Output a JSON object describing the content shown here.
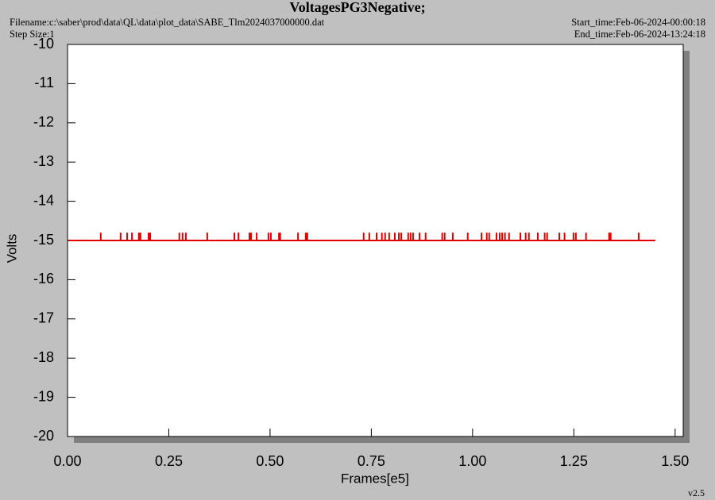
{
  "chart_data": {
    "type": "line",
    "title": "VoltagesPG3Negative;",
    "filename": "Filename:c:\\saber\\prod\\data\\QL\\data\\plot_data\\SABE_Tlm2024037000000.dat",
    "step_size": "Step Size:1",
    "start_time": "Start_time:Feb-06-2024-00:00:18",
    "end_time": "End_time:Feb-06-2024-13:24:18",
    "version": "v2.5",
    "xlabel": "Frames[e5]",
    "ylabel": "Volts",
    "xlim": [
      0,
      1.52
    ],
    "ylim": [
      -20,
      -10
    ],
    "xticks": [
      {
        "value": 0,
        "label": "0.00"
      },
      {
        "value": 0.25,
        "label": "0.25"
      },
      {
        "value": 0.5,
        "label": "0.50"
      },
      {
        "value": 0.75,
        "label": "0.75"
      },
      {
        "value": 1,
        "label": "1.00"
      },
      {
        "value": 1.25,
        "label": "1.25"
      },
      {
        "value": 1.5,
        "label": "1.50"
      }
    ],
    "yticks": [
      -20,
      -19,
      -18,
      -17,
      -16,
      -15,
      -14,
      -13,
      -12,
      -11,
      -10
    ],
    "series": [
      {
        "color": "#e00000",
        "x": [
          0,
          0.082,
          0.082,
          0.082,
          0.131,
          0.131,
          0.131,
          0.147,
          0.147,
          0.147,
          0.159,
          0.159,
          0.159,
          0.176,
          0.176,
          0.176,
          0.18,
          0.18,
          0.18,
          0.2,
          0.2,
          0.2,
          0.204,
          0.204,
          0.204,
          0.276,
          0.276,
          0.276,
          0.284,
          0.284,
          0.284,
          0.292,
          0.292,
          0.292,
          0.345,
          0.345,
          0.345,
          0.412,
          0.412,
          0.412,
          0.422,
          0.422,
          0.422,
          0.449,
          0.449,
          0.449,
          0.453,
          0.453,
          0.453,
          0.467,
          0.467,
          0.467,
          0.496,
          0.496,
          0.496,
          0.502,
          0.502,
          0.502,
          0.522,
          0.522,
          0.522,
          0.525,
          0.525,
          0.525,
          0.569,
          0.569,
          0.569,
          0.588,
          0.588,
          0.588,
          0.592,
          0.592,
          0.592,
          0.731,
          0.731,
          0.731,
          0.745,
          0.745,
          0.745,
          0.763,
          0.763,
          0.763,
          0.776,
          0.776,
          0.776,
          0.784,
          0.784,
          0.784,
          0.794,
          0.794,
          0.794,
          0.808,
          0.808,
          0.808,
          0.818,
          0.818,
          0.818,
          0.824,
          0.824,
          0.824,
          0.841,
          0.841,
          0.841,
          0.847,
          0.847,
          0.847,
          0.853,
          0.853,
          0.853,
          0.869,
          0.869,
          0.869,
          0.884,
          0.884,
          0.884,
          0.925,
          0.925,
          0.925,
          0.931,
          0.931,
          0.931,
          0.951,
          0.951,
          0.951,
          0.988,
          0.988,
          0.988,
          1.022,
          1.022,
          1.022,
          1.035,
          1.035,
          1.035,
          1.041,
          1.041,
          1.041,
          1.059,
          1.059,
          1.059,
          1.067,
          1.067,
          1.067,
          1.073,
          1.073,
          1.073,
          1.08,
          1.08,
          1.08,
          1.09,
          1.09,
          1.09,
          1.118,
          1.118,
          1.118,
          1.131,
          1.131,
          1.131,
          1.139,
          1.139,
          1.139,
          1.161,
          1.161,
          1.161,
          1.178,
          1.178,
          1.178,
          1.184,
          1.184,
          1.184,
          1.214,
          1.214,
          1.214,
          1.227,
          1.227,
          1.227,
          1.249,
          1.249,
          1.249,
          1.255,
          1.255,
          1.255,
          1.28,
          1.28,
          1.28,
          1.337,
          1.337,
          1.337,
          1.341,
          1.341,
          1.341,
          1.41,
          1.41,
          1.41,
          1.451
        ],
        "values": [
          -15,
          -15,
          -14.8,
          -15,
          -15,
          -14.8,
          -15,
          -15,
          -14.8,
          -15,
          -15,
          -14.8,
          -15,
          -15,
          -14.8,
          -15,
          -15,
          -14.8,
          -15,
          -15,
          -14.8,
          -15,
          -15,
          -14.8,
          -15,
          -15,
          -14.8,
          -15,
          -15,
          -14.8,
          -15,
          -15,
          -14.8,
          -15,
          -15,
          -14.8,
          -15,
          -15,
          -14.8,
          -15,
          -15,
          -14.8,
          -15,
          -15,
          -14.8,
          -15,
          -15,
          -14.8,
          -15,
          -15,
          -14.8,
          -15,
          -15,
          -14.8,
          -15,
          -15,
          -14.8,
          -15,
          -15,
          -14.8,
          -15,
          -15,
          -14.8,
          -15,
          -15,
          -14.8,
          -15,
          -15,
          -14.8,
          -15,
          -15,
          -14.8,
          -15,
          -15,
          -14.8,
          -15,
          -15,
          -14.8,
          -15,
          -15,
          -14.8,
          -15,
          -15,
          -14.8,
          -15,
          -15,
          -14.8,
          -15,
          -15,
          -14.8,
          -15,
          -15,
          -14.8,
          -15,
          -15,
          -14.8,
          -15,
          -15,
          -14.8,
          -15,
          -15,
          -14.8,
          -15,
          -15,
          -14.8,
          -15,
          -15,
          -14.8,
          -15,
          -15,
          -14.8,
          -15,
          -15,
          -14.8,
          -15,
          -15,
          -14.8,
          -15,
          -15,
          -14.8,
          -15,
          -15,
          -14.8,
          -15,
          -15,
          -14.8,
          -15,
          -15,
          -14.8,
          -15,
          -15,
          -14.8,
          -15,
          -15,
          -14.8,
          -15,
          -15,
          -14.8,
          -15,
          -15,
          -14.8,
          -15,
          -15,
          -14.8,
          -15,
          -15,
          -14.8,
          -15,
          -15,
          -14.8,
          -15,
          -15,
          -14.8,
          -15,
          -15,
          -14.8,
          -15,
          -15,
          -14.8,
          -15,
          -15,
          -14.8,
          -15,
          -15,
          -14.8,
          -15,
          -15,
          -14.8,
          -15,
          -15,
          -14.8,
          -15,
          -15,
          -14.8,
          -15,
          -15,
          -14.8,
          -15,
          -15,
          -14.8,
          -15,
          -15,
          -14.8,
          -15,
          -15,
          -14.8,
          -15,
          -15,
          -14.8,
          -15,
          -15,
          -14.8,
          -15,
          -15
        ]
      }
    ]
  }
}
